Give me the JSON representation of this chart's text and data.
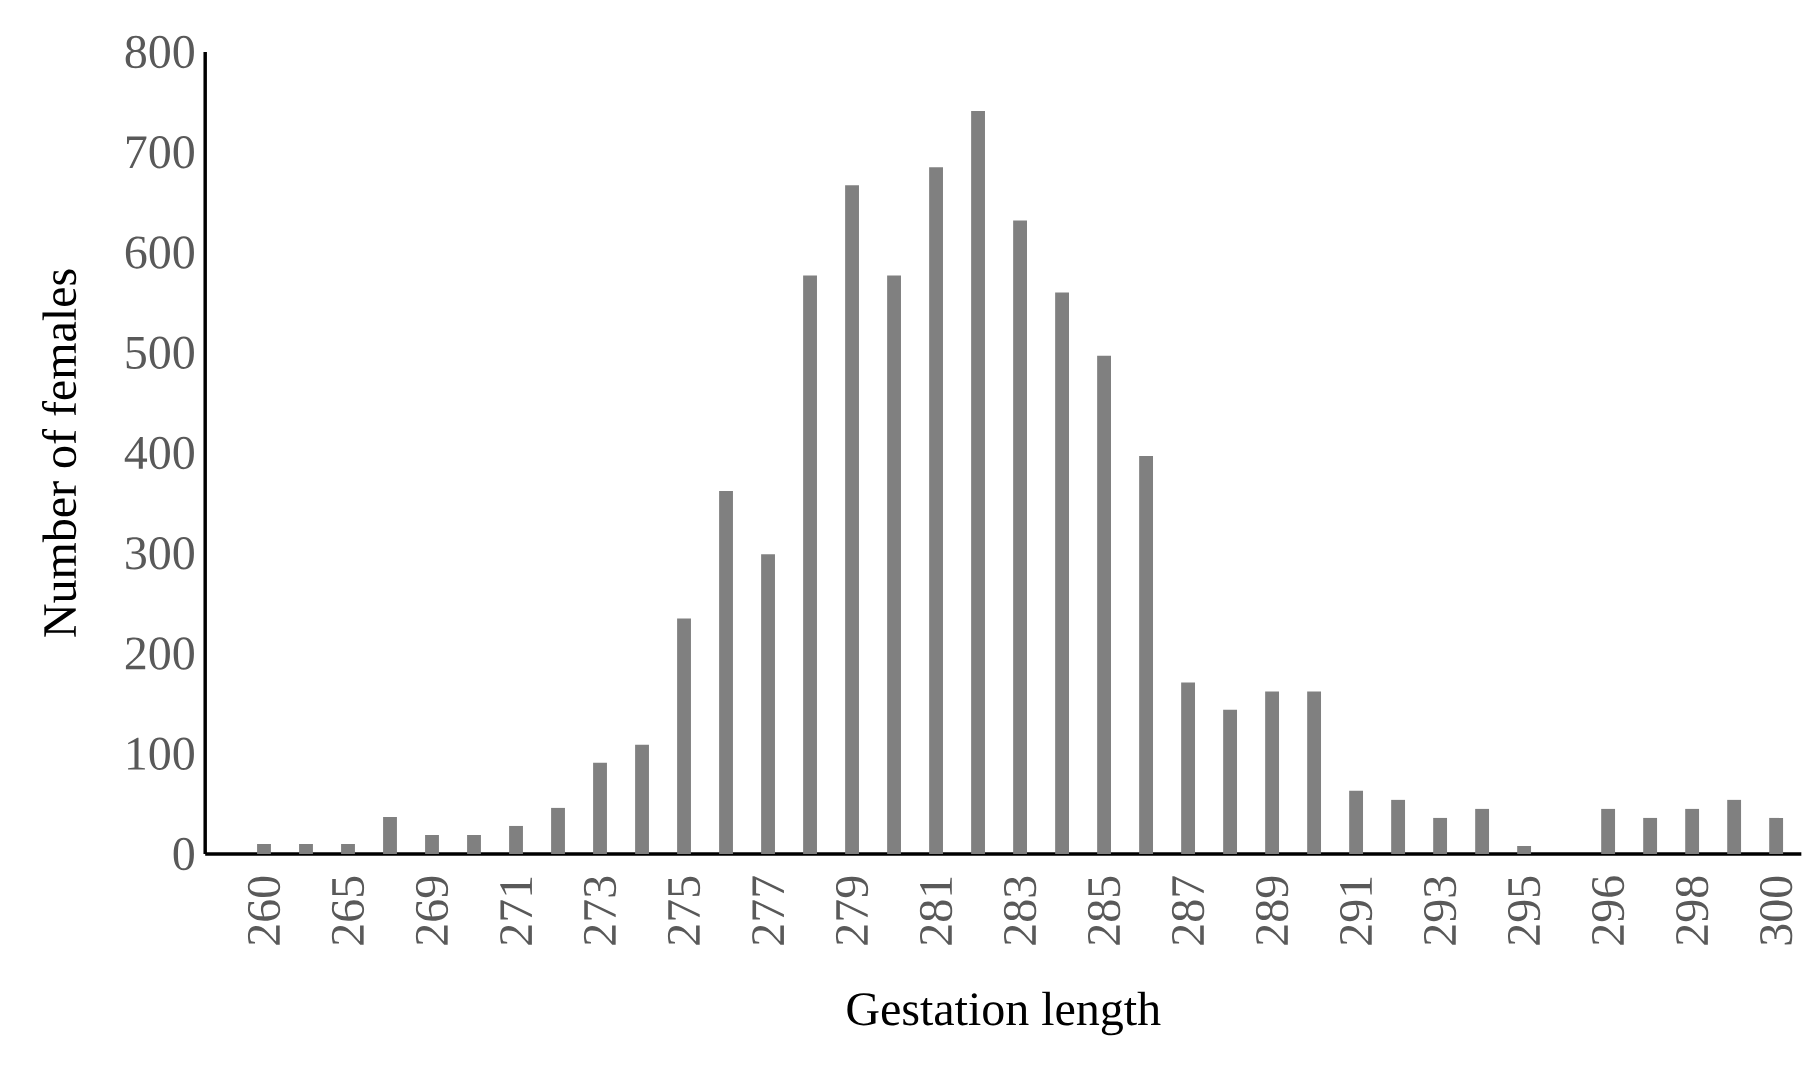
{
  "chart_data": {
    "type": "bar",
    "xlabel": "Gestation length",
    "ylabel": "Number of females",
    "categories": [
      "260",
      null,
      "265",
      null,
      "269",
      null,
      "271",
      null,
      "273",
      null,
      "275",
      null,
      "277",
      null,
      "279",
      null,
      "281",
      null,
      "283",
      null,
      "285",
      null,
      "287",
      null,
      "289",
      null,
      "291",
      null,
      "293",
      null,
      "295",
      null,
      "296",
      null,
      "298",
      null,
      "300"
    ],
    "values": [
      10,
      10,
      10,
      37,
      19,
      19,
      28,
      46,
      91,
      109,
      235,
      362,
      299,
      577,
      667,
      577,
      685,
      741,
      632,
      560,
      497,
      397,
      171,
      144,
      162,
      162,
      63,
      54,
      36,
      45,
      8,
      0,
      45,
      36,
      45,
      54,
      36
    ],
    "color": "#808080",
    "ylim": [
      0,
      800
    ],
    "yticks": [
      0,
      100,
      200,
      300,
      400,
      500,
      600,
      700,
      800
    ],
    "grid": false
  }
}
